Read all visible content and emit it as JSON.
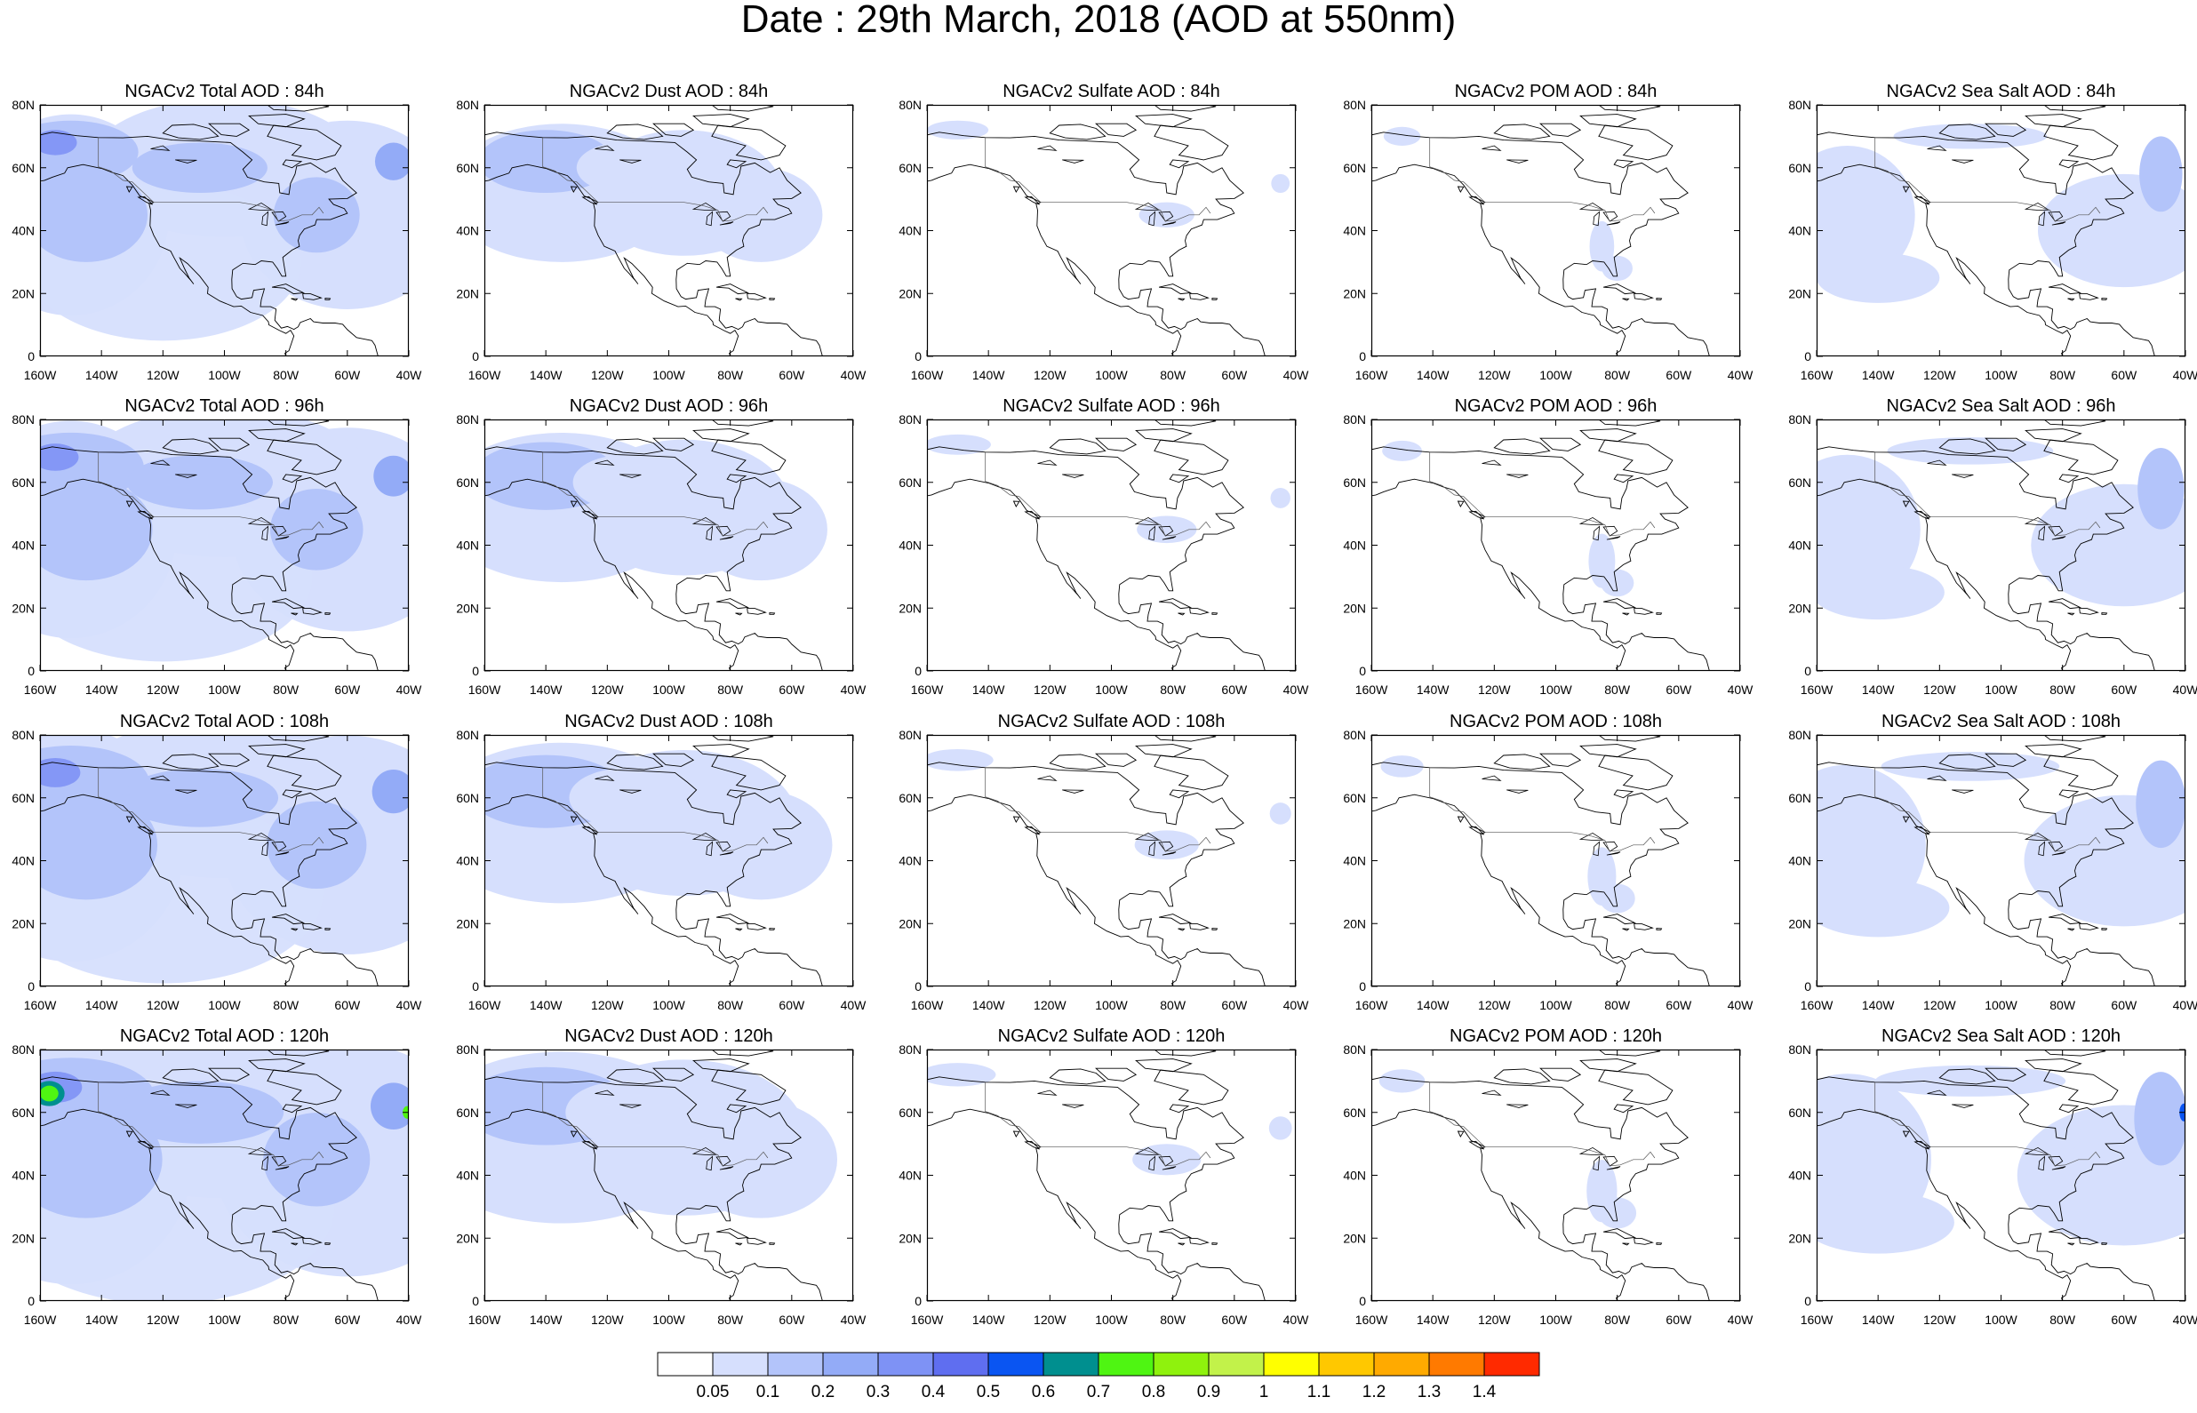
{
  "title": "Date : 29th March, 2018 (AOD at 550nm)",
  "panel_grid": {
    "rows": [
      {
        "forecast": "84h",
        "titles": [
          "NGACv2 Total AOD : 84h",
          "NGACv2 Dust AOD : 84h",
          "NGACv2 Sulfate AOD : 84h",
          "NGACv2 POM AOD : 84h",
          "NGACv2 Sea Salt AOD : 84h"
        ]
      },
      {
        "forecast": "96h",
        "titles": [
          "NGACv2 Total AOD : 96h",
          "NGACv2 Dust AOD : 96h",
          "NGACv2 Sulfate AOD : 96h",
          "NGACv2 POM AOD : 96h",
          "NGACv2 Sea Salt AOD : 96h"
        ]
      },
      {
        "forecast": "108h",
        "titles": [
          "NGACv2 Total AOD : 108h",
          "NGACv2 Dust AOD : 108h",
          "NGACv2 Sulfate AOD : 108h",
          "NGACv2 POM AOD : 108h",
          "NGACv2 Sea Salt AOD : 108h"
        ]
      },
      {
        "forecast": "120h",
        "titles": [
          "NGACv2 Total AOD : 120h",
          "NGACv2 Dust AOD : 120h",
          "NGACv2 Sulfate AOD : 120h",
          "NGACv2 POM AOD : 120h",
          "NGACv2 Sea Salt  AOD : 120h"
        ]
      }
    ]
  },
  "map_extent": {
    "lon_min": -160,
    "lon_max": -40,
    "lat_min": 0,
    "lat_max": 80
  },
  "axes": {
    "lat_ticks": [
      {
        "v": 0,
        "label": "0"
      },
      {
        "v": 20,
        "label": "20N"
      },
      {
        "v": 40,
        "label": "40N"
      },
      {
        "v": 60,
        "label": "60N"
      },
      {
        "v": 80,
        "label": "80N"
      }
    ],
    "lon_ticks_full": [
      {
        "v": -160,
        "label": "160W"
      },
      {
        "v": -140,
        "label": "140W"
      },
      {
        "v": -120,
        "label": "120W"
      },
      {
        "v": -100,
        "label": "100W"
      },
      {
        "v": -80,
        "label": "80W"
      },
      {
        "v": -60,
        "label": "60W"
      },
      {
        "v": -40,
        "label": "40W"
      }
    ],
    "lon_ticks_pom": [
      {
        "v": -160,
        "label": "160W"
      },
      {
        "v": -140,
        "label": "140W"
      },
      {
        "v": -120,
        "label": "120W"
      },
      {
        "v": -100,
        "label": "100W"
      },
      {
        "v": -80,
        "label": "80W"
      },
      {
        "v": -60,
        "label": "60W"
      },
      {
        "v": -40,
        "label": "40W"
      }
    ]
  },
  "colorbar": {
    "colors": [
      "#ffffff",
      "#d6dffd",
      "#b3c4fa",
      "#93abf7",
      "#7e92f5",
      "#5f6ef0",
      "#0a55f2",
      "#008f8f",
      "#4ff512",
      "#8ff20d",
      "#c2f24a",
      "#ffff00",
      "#ffc800",
      "#ffaa00",
      "#ff7a00",
      "#ff2a00"
    ],
    "labels": [
      "0.05",
      "0.1",
      "0.2",
      "0.3",
      "0.4",
      "0.5",
      "0.6",
      "0.7",
      "0.8",
      "0.9",
      "1",
      "1.1",
      "1.2",
      "1.3",
      "1.4"
    ]
  },
  "field_colors": {
    "low": "#d6dffd",
    "mid": "#b3c4fa",
    "high": "#93abf7",
    "higher": "#7e92f5",
    "peak_green": "#4ff512",
    "peak_teal": "#008f8f"
  }
}
